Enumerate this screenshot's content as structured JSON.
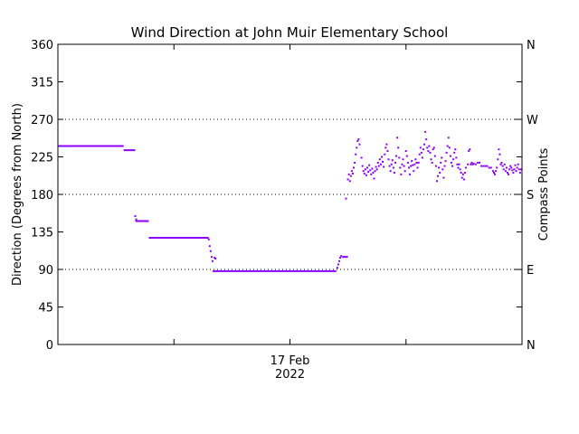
{
  "chart_data": {
    "type": "scatter",
    "title": "Wind Direction at John Muir Elementary School",
    "ylabel": "Direction (Degrees from North)",
    "y2label": "Compass Points",
    "xlabel_date": "17 Feb",
    "xlabel_year": "2022",
    "ylim": [
      0,
      360
    ],
    "xlim": [
      0,
      24
    ],
    "yticks": [
      0,
      45,
      90,
      135,
      180,
      225,
      270,
      315,
      360
    ],
    "ytick_labels": [
      "0",
      "45",
      "90",
      "135",
      "180",
      "225",
      "270",
      "315",
      "360"
    ],
    "compass": [
      {
        "label": "N",
        "value": 0
      },
      {
        "label": "E",
        "value": 90
      },
      {
        "label": "S",
        "value": 180
      },
      {
        "label": "W",
        "value": 270
      },
      {
        "label": "N",
        "value": 360
      }
    ],
    "gridlines_y": [
      90,
      180,
      270
    ],
    "grid": "dotted at 90, 180, 270",
    "series_color": "#8c00ff",
    "x_label_at": 12,
    "series": [
      {
        "segments": [
          {
            "x0": 0.0,
            "x1": 3.4,
            "y": 238
          },
          {
            "x0": 3.4,
            "x1": 4.0,
            "y": 233
          },
          {
            "x0": 4.0,
            "x1": 4.7,
            "y": 148
          },
          {
            "x0": 4.7,
            "x1": 7.8,
            "y": 128
          },
          {
            "x0": 8.0,
            "x1": 14.4,
            "y": 88
          },
          {
            "x0": 14.7,
            "x1": 15.0,
            "y": 105
          }
        ],
        "points": [
          [
            4.0,
            154
          ],
          [
            4.05,
            150
          ],
          [
            7.8,
            126
          ],
          [
            7.85,
            118
          ],
          [
            7.9,
            112
          ],
          [
            7.95,
            105
          ],
          [
            8.0,
            100
          ],
          [
            8.1,
            104
          ],
          [
            8.15,
            103
          ],
          [
            14.45,
            92
          ],
          [
            14.5,
            96
          ],
          [
            14.55,
            100
          ],
          [
            14.6,
            104
          ],
          [
            14.65,
            106
          ],
          [
            14.9,
            175
          ],
          [
            15.0,
            198
          ],
          [
            15.05,
            204
          ],
          [
            15.1,
            196
          ],
          [
            15.15,
            202
          ],
          [
            15.2,
            208
          ],
          [
            15.25,
            205
          ],
          [
            15.3,
            212
          ],
          [
            15.35,
            218
          ],
          [
            15.4,
            228
          ],
          [
            15.45,
            236
          ],
          [
            15.5,
            244
          ],
          [
            15.55,
            246
          ],
          [
            15.6,
            240
          ],
          [
            15.7,
            224
          ],
          [
            15.75,
            214
          ],
          [
            15.8,
            208
          ],
          [
            15.85,
            205
          ],
          [
            15.9,
            210
          ],
          [
            15.95,
            203
          ],
          [
            16.0,
            212
          ],
          [
            16.05,
            207
          ],
          [
            16.1,
            215
          ],
          [
            16.15,
            209
          ],
          [
            16.2,
            204
          ],
          [
            16.25,
            211
          ],
          [
            16.3,
            206
          ],
          [
            16.35,
            199
          ],
          [
            16.4,
            208
          ],
          [
            16.45,
            213
          ],
          [
            16.5,
            210
          ],
          [
            16.55,
            218
          ],
          [
            16.6,
            214
          ],
          [
            16.65,
            222
          ],
          [
            16.7,
            216
          ],
          [
            16.75,
            225
          ],
          [
            16.8,
            219
          ],
          [
            16.85,
            213
          ],
          [
            16.9,
            228
          ],
          [
            16.95,
            236
          ],
          [
            17.0,
            240
          ],
          [
            17.05,
            232
          ],
          [
            17.1,
            222
          ],
          [
            17.15,
            214
          ],
          [
            17.2,
            208
          ],
          [
            17.25,
            216
          ],
          [
            17.3,
            221
          ],
          [
            17.35,
            212
          ],
          [
            17.4,
            206
          ],
          [
            17.45,
            218
          ],
          [
            17.5,
            226
          ],
          [
            17.55,
            248
          ],
          [
            17.6,
            236
          ],
          [
            17.65,
            224
          ],
          [
            17.7,
            212
          ],
          [
            17.75,
            204
          ],
          [
            17.8,
            216
          ],
          [
            17.85,
            222
          ],
          [
            17.9,
            214
          ],
          [
            17.95,
            208
          ],
          [
            18.0,
            232
          ],
          [
            18.05,
            226
          ],
          [
            18.1,
            218
          ],
          [
            18.15,
            212
          ],
          [
            18.2,
            204
          ],
          [
            18.25,
            214
          ],
          [
            18.3,
            220
          ],
          [
            18.35,
            215
          ],
          [
            18.4,
            208
          ],
          [
            18.45,
            216
          ],
          [
            18.5,
            222
          ],
          [
            18.55,
            218
          ],
          [
            18.6,
            212
          ],
          [
            18.65,
            218
          ],
          [
            18.7,
            228
          ],
          [
            18.75,
            236
          ],
          [
            18.8,
            230
          ],
          [
            18.85,
            224
          ],
          [
            18.9,
            234
          ],
          [
            18.95,
            240
          ],
          [
            19.0,
            255
          ],
          [
            19.05,
            246
          ],
          [
            19.1,
            236
          ],
          [
            19.15,
            232
          ],
          [
            19.2,
            238
          ],
          [
            19.25,
            230
          ],
          [
            19.3,
            222
          ],
          [
            19.35,
            218
          ],
          [
            19.4,
            234
          ],
          [
            19.45,
            236
          ],
          [
            19.5,
            226
          ],
          [
            19.55,
            214
          ],
          [
            19.6,
            196
          ],
          [
            19.65,
            202
          ],
          [
            19.7,
            212
          ],
          [
            19.75,
            206
          ],
          [
            19.8,
            218
          ],
          [
            19.85,
            224
          ],
          [
            19.9,
            210
          ],
          [
            19.95,
            200
          ],
          [
            20.0,
            214
          ],
          [
            20.05,
            220
          ],
          [
            20.1,
            230
          ],
          [
            20.15,
            238
          ],
          [
            20.2,
            248
          ],
          [
            20.25,
            236
          ],
          [
            20.3,
            226
          ],
          [
            20.35,
            218
          ],
          [
            20.4,
            214
          ],
          [
            20.45,
            222
          ],
          [
            20.5,
            230
          ],
          [
            20.55,
            234
          ],
          [
            20.6,
            224
          ],
          [
            20.65,
            216
          ],
          [
            20.7,
            212
          ],
          [
            20.75,
            216
          ],
          [
            20.8,
            210
          ],
          [
            20.85,
            206
          ],
          [
            20.9,
            200
          ],
          [
            20.95,
            204
          ],
          [
            21.0,
            198
          ],
          [
            21.05,
            206
          ],
          [
            21.1,
            212
          ],
          [
            21.2,
            216
          ],
          [
            21.25,
            232
          ],
          [
            21.3,
            234
          ],
          [
            21.35,
            216
          ],
          [
            21.4,
            218
          ],
          [
            21.45,
            216
          ],
          [
            21.5,
            217
          ],
          [
            21.6,
            216
          ],
          [
            21.7,
            218
          ],
          [
            21.8,
            218
          ],
          [
            21.9,
            214
          ],
          [
            22.0,
            214
          ],
          [
            22.1,
            214
          ],
          [
            22.2,
            214
          ],
          [
            22.3,
            212
          ],
          [
            22.4,
            212
          ],
          [
            22.5,
            208
          ],
          [
            22.55,
            206
          ],
          [
            22.6,
            204
          ],
          [
            22.65,
            208
          ],
          [
            22.7,
            212
          ],
          [
            22.75,
            222
          ],
          [
            22.8,
            234
          ],
          [
            22.85,
            228
          ],
          [
            22.9,
            216
          ],
          [
            22.95,
            218
          ],
          [
            23.0,
            214
          ],
          [
            23.05,
            210
          ],
          [
            23.1,
            216
          ],
          [
            23.15,
            208
          ],
          [
            23.2,
            212
          ],
          [
            23.25,
            206
          ],
          [
            23.3,
            204
          ],
          [
            23.35,
            210
          ],
          [
            23.4,
            214
          ],
          [
            23.45,
            212
          ],
          [
            23.5,
            209
          ],
          [
            23.55,
            206
          ],
          [
            23.6,
            210
          ],
          [
            23.65,
            215
          ],
          [
            23.7,
            208
          ],
          [
            23.75,
            212
          ],
          [
            23.8,
            216
          ],
          [
            23.85,
            210
          ],
          [
            23.9,
            206
          ],
          [
            23.95,
            210
          ]
        ]
      }
    ]
  }
}
